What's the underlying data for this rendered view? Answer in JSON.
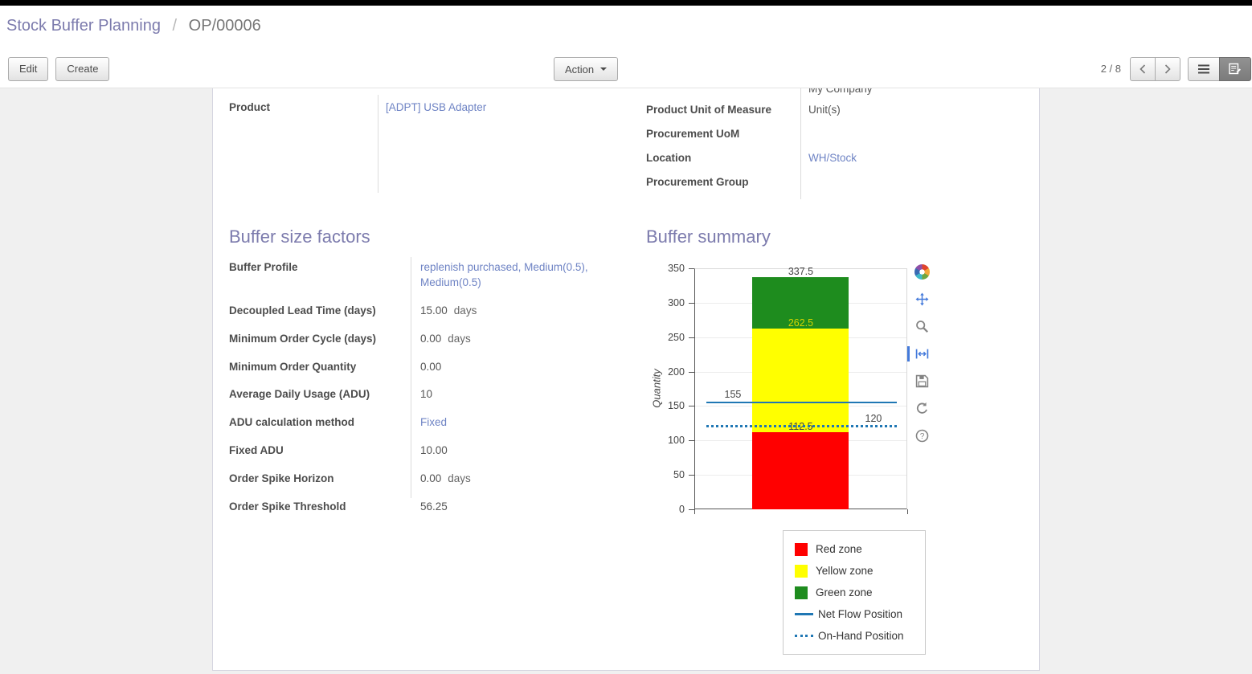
{
  "colors": {
    "brand": "#7c7bad",
    "link": "#6e83c4",
    "navbar": "#000000"
  },
  "breadcrumb": {
    "primary": "Stock Buffer Planning",
    "separator": "/",
    "current": "OP/00006"
  },
  "control_panel": {
    "edit_label": "Edit",
    "create_label": "Create",
    "action_label": "Action",
    "pager_text": "2 / 8"
  },
  "sheet": {
    "top_left": [
      {
        "label": "Product",
        "value": "[ADPT] USB Adapter"
      }
    ],
    "top_right": [
      {
        "label": "",
        "value": "My Company"
      },
      {
        "label": "Product Unit of Measure",
        "value": "Unit(s)"
      },
      {
        "label": "Procurement UoM",
        "value": ""
      },
      {
        "label": "Location",
        "value": "WH/Stock"
      },
      {
        "label": "Procurement Group",
        "value": ""
      }
    ],
    "buffer_factors": {
      "title": "Buffer size factors",
      "rows": [
        {
          "label": "Buffer Profile",
          "value": "replenish purchased, Medium(0.5), Medium(0.5)",
          "suffix": ""
        },
        {
          "label": "Decoupled Lead Time (days)",
          "value": "15.00",
          "suffix": "days"
        },
        {
          "label": "Minimum Order Cycle (days)",
          "value": "0.00",
          "suffix": "days"
        },
        {
          "label": "Minimum Order Quantity",
          "value": "0.00",
          "suffix": ""
        },
        {
          "label": "Average Daily Usage (ADU)",
          "value": "10",
          "suffix": ""
        },
        {
          "label": "ADU calculation method",
          "value": "Fixed",
          "suffix": ""
        },
        {
          "label": "Fixed ADU",
          "value": "10.00",
          "suffix": ""
        },
        {
          "label": "Order Spike Horizon",
          "value": "0.00",
          "suffix": "days"
        },
        {
          "label": "Order Spike Threshold",
          "value": "56.25",
          "suffix": ""
        }
      ]
    },
    "buffer_summary_title": "Buffer summary"
  },
  "chart_data": {
    "type": "bar",
    "title": "Buffer summary",
    "xlabel": "",
    "ylabel": "Quantity",
    "ylim": [
      0,
      350
    ],
    "ytick_step": 50,
    "grid": true,
    "bar": {
      "zones": [
        {
          "name": "Red zone",
          "from": 0,
          "to": 112.5,
          "color": "#ff0000",
          "top_label": "112.5",
          "top_label_color": "#444444"
        },
        {
          "name": "Yellow zone",
          "from": 112.5,
          "to": 262.5,
          "color": "#ffff00",
          "top_label": "262.5",
          "top_label_color": "#d4d400"
        },
        {
          "name": "Green zone",
          "from": 262.5,
          "to": 337.5,
          "color": "#1e8c1e",
          "top_label": "337.5",
          "top_label_color": "#444444"
        }
      ]
    },
    "lines": [
      {
        "name": "Net Flow Position",
        "value": 155,
        "label": "155",
        "style": "solid",
        "color": "#1f77b4",
        "label_side": "left"
      },
      {
        "name": "On-Hand Position",
        "value": 120,
        "label": "120",
        "style": "dotted",
        "color": "#1f77b4",
        "label_side": "right"
      }
    ],
    "legend": {
      "position": "bottom-right",
      "entries": [
        "Red zone",
        "Yellow zone",
        "Green zone",
        "Net Flow Position",
        "On-Hand Position"
      ]
    }
  }
}
